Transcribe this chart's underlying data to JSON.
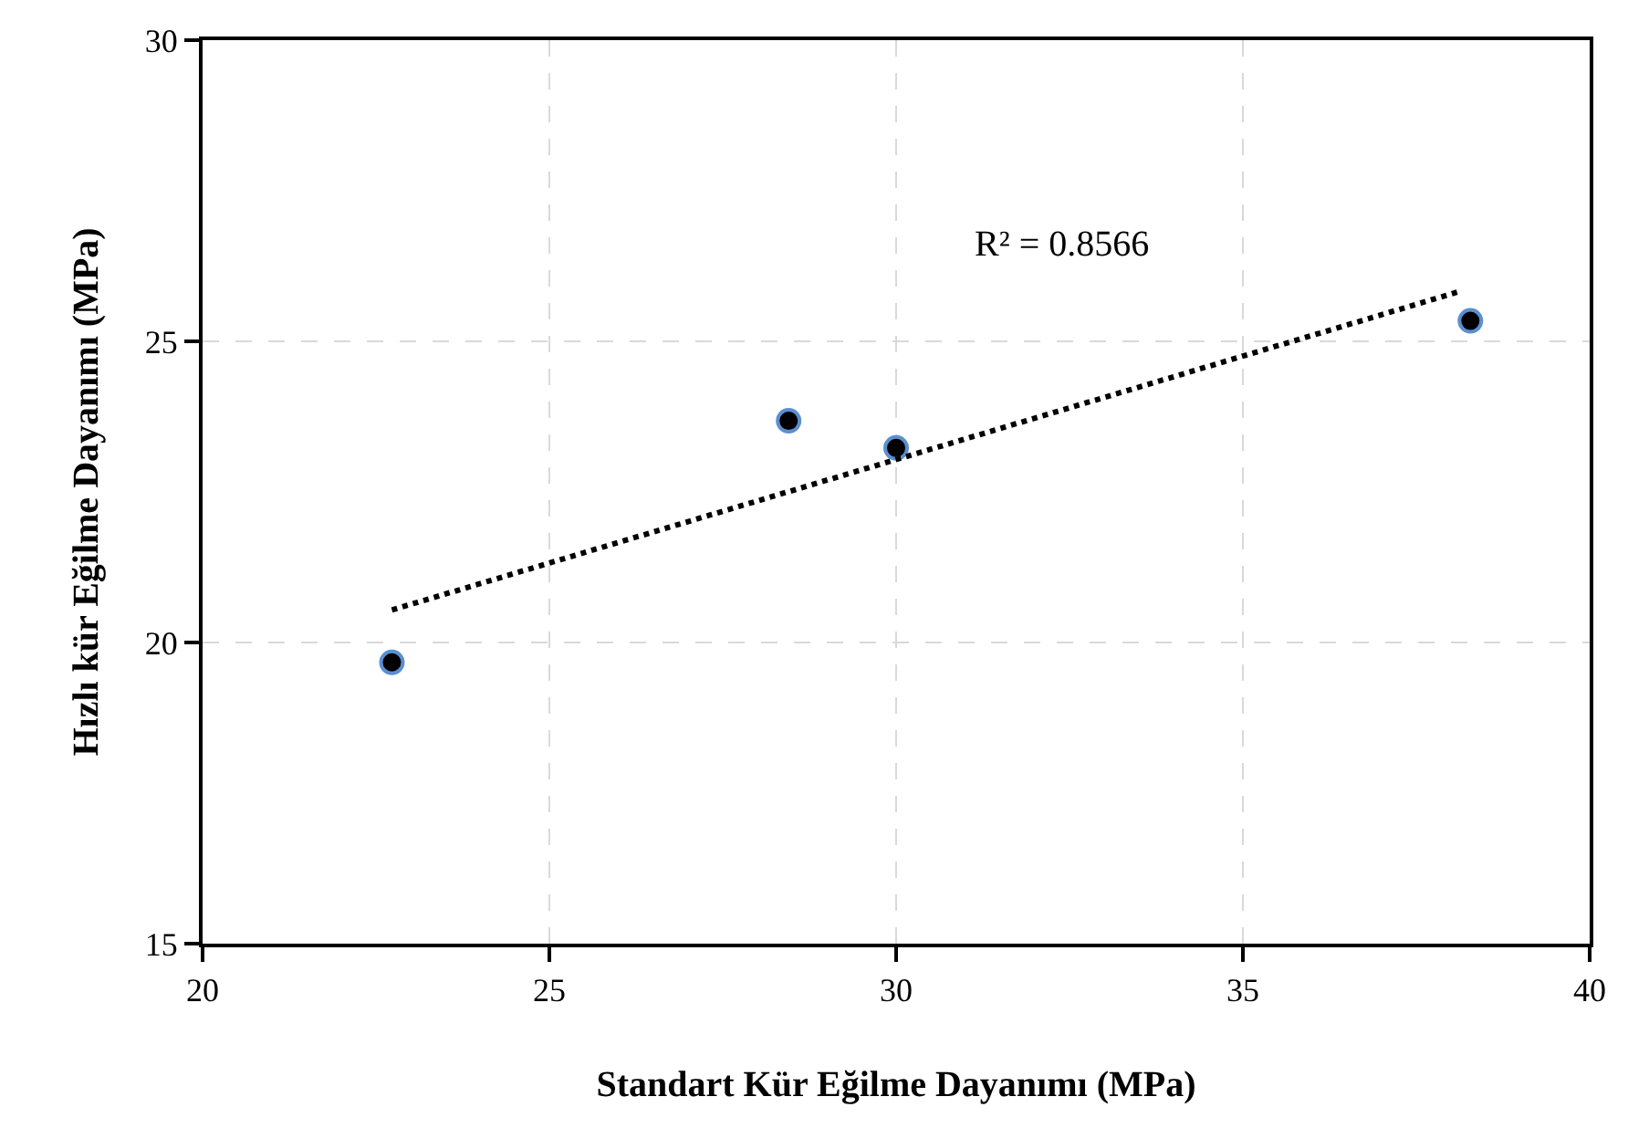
{
  "chart_data": {
    "type": "scatter",
    "xlabel": "Standart Kür Eğilme Dayanımı (MPa)",
    "ylabel": "Hızlı kür Eğilme Dayanımı (MPa)",
    "x": [
      22.73,
      28.45,
      30.0,
      38.28
    ],
    "series": [
      {
        "color": "#000000",
        "values": [
          19.67,
          23.68,
          23.23,
          25.34
        ],
        "marker": "circle"
      },
      {
        "type": "line",
        "color": "#000000",
        "x": [
          22.73,
          38.1
        ],
        "values": [
          20.54,
          25.82
        ],
        "line_style": "dotted",
        "marker": "none"
      }
    ],
    "xlim": [
      20,
      40
    ],
    "ylim": [
      15,
      30
    ],
    "xticks": [
      20,
      25,
      30,
      35,
      40
    ],
    "yticks": [
      15,
      20,
      25,
      30
    ],
    "grid": true,
    "annotations": [
      "R² = 0.8566"
    ]
  }
}
